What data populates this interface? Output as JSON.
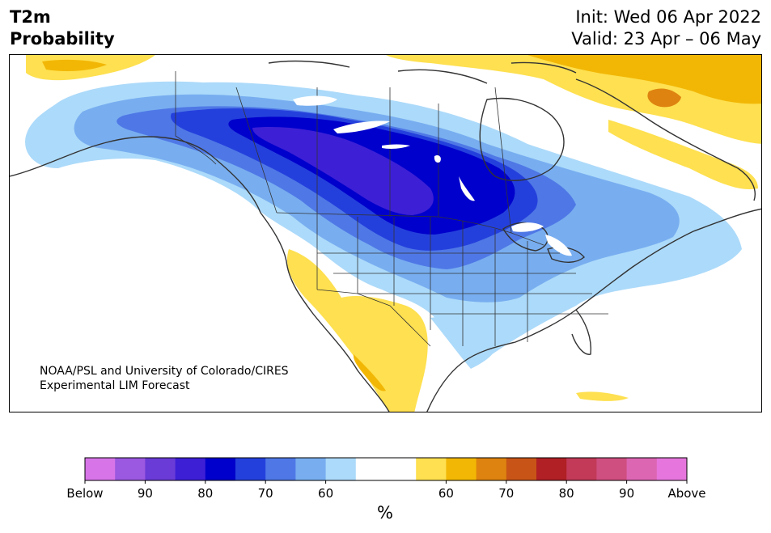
{
  "header": {
    "title_line1": "T2m",
    "title_line2": "Probability",
    "init": "Init: Wed 06 Apr 2022",
    "valid": "Valid: 23 Apr – 06 May"
  },
  "credit": {
    "line1": "NOAA/PSL and University of Colorado/CIRES",
    "line2": "Experimental LIM Forecast"
  },
  "colorbar": {
    "unit": "%",
    "tick_labels": [
      "Below",
      "90",
      "80",
      "70",
      "60",
      "60",
      "70",
      "80",
      "90",
      "Above"
    ],
    "colors": [
      "#d775e8",
      "#9b58e0",
      "#6a3bd6",
      "#3d1fd6",
      "#0000cc",
      "#2440dc",
      "#4f78e6",
      "#78aef0",
      "#acdafa",
      "#ffffff",
      "#ffffff",
      "#fee050",
      "#f2b705",
      "#de8310",
      "#c85517",
      "#b02025",
      "#c23a58",
      "#cf4f80",
      "#dd66b3",
      "#e676dd"
    ]
  },
  "colors": {
    "border": "#333333",
    "frame": "#000000"
  }
}
